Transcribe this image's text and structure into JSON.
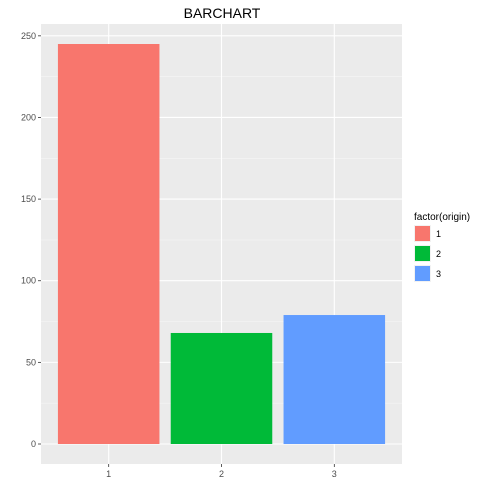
{
  "chart_data": {
    "type": "bar",
    "title": "BARCHART",
    "xlabel": "",
    "ylabel": "",
    "categories": [
      "1",
      "2",
      "3"
    ],
    "values": [
      245,
      68,
      79
    ],
    "colors": [
      "#F8766D",
      "#00BA38",
      "#619CFF"
    ],
    "ylim": [
      -12.25,
      257.25
    ],
    "y_ticks": [
      0,
      50,
      100,
      150,
      200,
      250
    ],
    "y_tick_labels": [
      "0",
      "50",
      "100",
      "150",
      "200",
      "250"
    ],
    "grid": true,
    "panel_background": "#EBEBEB",
    "legend": {
      "position": "right",
      "title": "factor(origin)",
      "items": [
        {
          "label": "1",
          "color": "#F8766D"
        },
        {
          "label": "2",
          "color": "#00BA38"
        },
        {
          "label": "3",
          "color": "#619CFF"
        }
      ]
    }
  }
}
